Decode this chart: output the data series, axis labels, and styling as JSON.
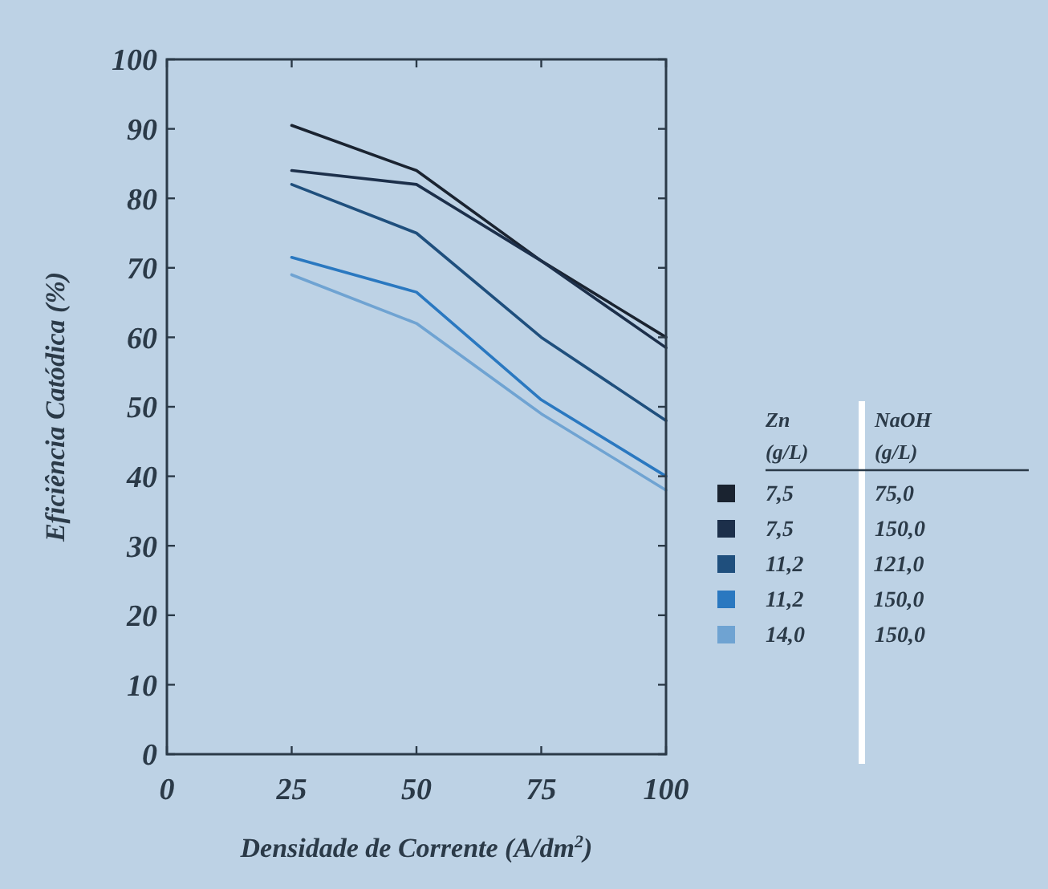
{
  "chart_data": {
    "type": "line",
    "xlabel": "Densidade de Corrente (A/dm$^{2}$)",
    "ylabel": "Eficiência Catódica (%)",
    "x": [
      25,
      50,
      75,
      100
    ],
    "xlim": [
      0,
      100
    ],
    "xticks": [
      0,
      25,
      50,
      75,
      100
    ],
    "ylim": [
      0,
      100
    ],
    "yticks": [
      0,
      10,
      20,
      30,
      40,
      50,
      60,
      70,
      80,
      90,
      100
    ],
    "grid": false,
    "legend_title": "Zn\n(g/L)\tNaOH\n(g/L)",
    "marker": "none",
    "line_style": "solid",
    "series": [
      {
        "name": "7,5 75,0",
        "color": "#1a2330",
        "values": [
          90.5,
          84,
          71,
          60
        ]
      },
      {
        "name": "7,5 150,0",
        "color": "#1c2f4a",
        "values": [
          84,
          82,
          71,
          58.5
        ]
      },
      {
        "name": "11,2 121,0",
        "color": "#1f4f7d",
        "values": [
          82,
          75,
          60,
          48
        ]
      },
      {
        "name": "11,2 150,0",
        "color": "#2a78c0",
        "values": [
          71.5,
          66.5,
          51,
          40
        ]
      },
      {
        "name": "14,0 150,0",
        "color": "#6fa3d2",
        "values": [
          69,
          62,
          49,
          38
        ]
      }
    ]
  }
}
